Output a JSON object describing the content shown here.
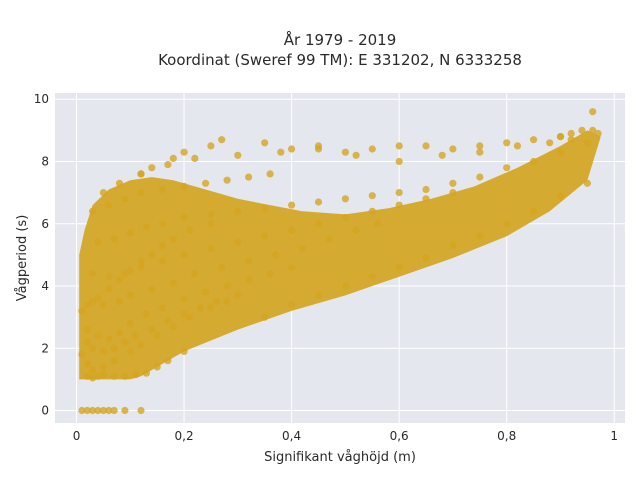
{
  "chart_data": {
    "type": "scatter",
    "title_lines": [
      "År 1979 - 2019",
      "Koordinat (Sweref 99 TM): E 331202, N 6333258"
    ],
    "xlabel": "Signifikant våghöjd (m)",
    "ylabel": "Vågperiod (s)",
    "xlim": [
      -0.04,
      1.02
    ],
    "ylim": [
      -0.4,
      10.2
    ],
    "x_ticks": [
      0,
      0.2,
      0.4,
      0.6,
      0.8,
      1
    ],
    "x_tick_labels": [
      "0",
      "0,2",
      "0,4",
      "0,6",
      "0,8",
      "1"
    ],
    "y_ticks": [
      0,
      2,
      4,
      6,
      8,
      10
    ],
    "y_tick_labels": [
      "0",
      "2",
      "4",
      "6",
      "8",
      "10"
    ],
    "grid": true,
    "legend": "none",
    "marker_color": "#d4a521",
    "plot_background": "#e5e7ef",
    "series": [
      {
        "x": [
          0.01,
          0.02,
          0.03,
          0.04,
          0.05,
          0.06,
          0.07,
          0.09,
          0.12,
          0.02,
          0.03,
          0.04,
          0.05,
          0.07,
          0.09,
          0.11,
          0.13,
          0.15,
          0.17,
          0.2,
          0.01,
          0.02,
          0.03,
          0.05,
          0.07,
          0.1,
          0.12,
          0.15,
          0.18,
          0.21,
          0.25,
          0.28,
          0.3,
          0.02,
          0.04,
          0.06,
          0.08,
          0.1,
          0.13,
          0.16,
          0.2,
          0.24,
          0.28,
          0.32,
          0.36,
          0.4,
          0.03,
          0.05,
          0.08,
          0.1,
          0.14,
          0.18,
          0.22,
          0.27,
          0.32,
          0.37,
          0.42,
          0.47,
          0.52,
          0.56,
          0.03,
          0.06,
          0.09,
          0.12,
          0.16,
          0.2,
          0.25,
          0.3,
          0.35,
          0.4,
          0.45,
          0.5,
          0.55,
          0.6,
          0.65,
          0.7,
          0.35,
          0.4,
          0.45,
          0.5,
          0.55,
          0.6,
          0.65,
          0.7,
          0.75,
          0.8,
          0.85,
          0.9,
          0.95,
          0.04,
          0.07,
          0.1,
          0.13,
          0.16,
          0.2,
          0.25,
          0.3,
          0.35,
          0.4,
          0.45,
          0.5,
          0.55,
          0.6,
          0.65,
          0.7,
          0.75,
          0.8,
          0.85,
          0.9,
          0.95,
          0.97,
          0.03,
          0.06,
          0.09,
          0.12,
          0.16,
          0.2,
          0.24,
          0.28,
          0.32,
          0.36,
          0.05,
          0.08,
          0.12,
          0.17,
          0.22,
          0.3,
          0.38,
          0.45,
          0.52,
          0.6,
          0.68,
          0.75,
          0.82,
          0.88,
          0.92,
          0.96,
          0.12,
          0.14,
          0.18,
          0.2,
          0.25,
          0.27,
          0.35,
          0.4,
          0.45,
          0.5,
          0.55,
          0.6,
          0.65,
          0.7,
          0.75,
          0.8,
          0.85,
          0.9,
          0.02,
          0.03,
          0.05,
          0.07,
          0.09,
          0.11,
          0.14,
          0.17,
          0.2,
          0.23,
          0.26,
          0.01,
          0.02,
          0.04,
          0.06,
          0.08,
          0.1,
          0.12,
          0.14,
          0.16,
          0.18,
          0.21,
          0.25,
          0.96,
          0.94,
          0.92,
          0.9
        ],
        "y": [
          0,
          0,
          0,
          0,
          0,
          0,
          0,
          0,
          0,
          1.1,
          1.05,
          1.1,
          1.15,
          1.1,
          1.1,
          1.15,
          1.2,
          1.4,
          1.6,
          1.9,
          1.8,
          1.5,
          1.3,
          1.4,
          1.6,
          1.9,
          2.1,
          2.4,
          2.7,
          3.0,
          3.3,
          3.5,
          3.7,
          2.6,
          2.4,
          2.3,
          2.5,
          2.8,
          3.1,
          3.3,
          3.6,
          3.8,
          4.0,
          4.2,
          4.4,
          4.6,
          3.5,
          3.4,
          3.5,
          3.7,
          3.9,
          4.1,
          4.4,
          4.6,
          4.8,
          5.0,
          5.2,
          5.5,
          5.8,
          6.0,
          4.4,
          4.3,
          4.4,
          4.6,
          4.8,
          5.0,
          5.2,
          5.4,
          5.6,
          5.8,
          6.0,
          6.2,
          6.4,
          6.6,
          6.8,
          7.0,
          3.0,
          3.4,
          3.7,
          4.0,
          4.3,
          4.6,
          4.9,
          5.3,
          5.6,
          6.0,
          6.4,
          6.9,
          7.3,
          5.4,
          5.5,
          5.7,
          5.9,
          6.0,
          6.2,
          6.3,
          6.4,
          6.5,
          6.6,
          6.7,
          6.8,
          6.9,
          7.0,
          7.1,
          7.3,
          7.5,
          7.8,
          8.0,
          8.3,
          8.6,
          8.9,
          6.4,
          6.6,
          6.8,
          7.0,
          7.1,
          7.2,
          7.3,
          7.4,
          7.5,
          7.6,
          7.0,
          7.3,
          7.6,
          7.9,
          8.1,
          8.2,
          8.3,
          8.4,
          8.2,
          8.0,
          8.2,
          8.3,
          8.5,
          8.6,
          8.7,
          9.0,
          7.6,
          7.8,
          8.1,
          8.3,
          8.5,
          8.7,
          8.6,
          8.4,
          8.5,
          8.3,
          8.4,
          8.5,
          8.5,
          8.4,
          8.5,
          8.6,
          8.7,
          8.8,
          2.2,
          2.0,
          1.9,
          2.0,
          2.2,
          2.4,
          2.6,
          2.9,
          3.1,
          3.3,
          3.5,
          3.2,
          3.4,
          3.6,
          3.9,
          4.2,
          4.5,
          4.8,
          5.0,
          5.3,
          5.5,
          5.8,
          6.0,
          9.6,
          9.0,
          8.9,
          8.8
        ]
      }
    ]
  }
}
